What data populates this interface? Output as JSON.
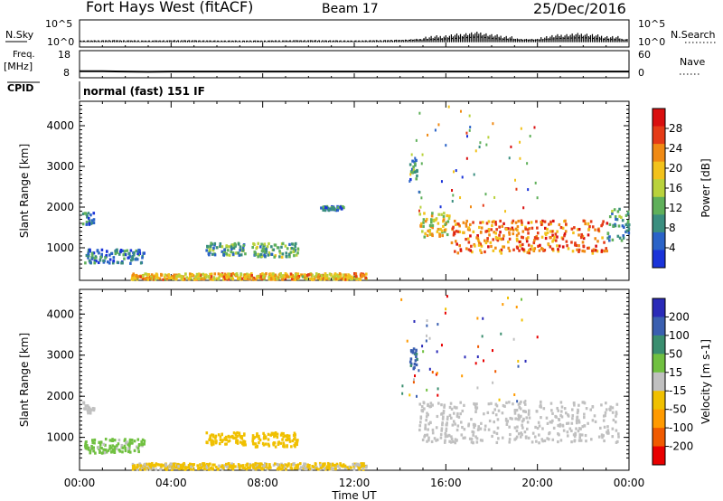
{
  "header": {
    "title": "Fort Hays West (fitACF)",
    "beam": "Beam 17",
    "date": "25/Dec/2016"
  },
  "mode_text": "normal (fast) 151 IF",
  "chart_data": [
    {
      "type": "line",
      "name": "noise-panel",
      "labels_left": {
        "main": "N.Sky",
        "ticks": [
          "10^5",
          "10^0"
        ]
      },
      "labels_right": {
        "main": "N.Search",
        "ticks": [
          "10^5",
          "10^0"
        ]
      },
      "x": {
        "ticks": [
          "00:00",
          "04:00",
          "08:00",
          "12:00",
          "16:00",
          "20:00",
          "00:00"
        ],
        "range_hours": [
          0,
          24
        ]
      },
      "series": [
        {
          "name": "N.Sky",
          "style": "solid",
          "hours": [
            0,
            1.5,
            3,
            4.5,
            6,
            8,
            10,
            12,
            14,
            15,
            16,
            17,
            17.5,
            18,
            19,
            20,
            21,
            22,
            23,
            24
          ],
          "log10_values": [
            0.5,
            0.6,
            0.5,
            0.6,
            0.5,
            0.5,
            0.6,
            0.5,
            0.7,
            1.0,
            1.4,
            2.0,
            2.2,
            1.6,
            1.0,
            0.9,
            1.6,
            1.9,
            1.2,
            0.9
          ]
        }
      ]
    },
    {
      "type": "line",
      "name": "freq-nave-panel",
      "labels_left": {
        "main": "Freq.",
        "unit": "[MHz]",
        "ticks": [
          "18",
          "8"
        ],
        "ylim": [
          8,
          18
        ]
      },
      "labels_right": {
        "main": "Nave",
        "ticks": [
          "60",
          "0"
        ],
        "ylim": [
          0,
          60
        ]
      },
      "cpid_label": "CPID",
      "series": [
        {
          "name": "Freq.",
          "hours": [
            0,
            1,
            2,
            3,
            4,
            5,
            6,
            8,
            10,
            12,
            14,
            16,
            18,
            20,
            22,
            24
          ],
          "values": [
            10.4,
            10.4,
            10.3,
            10.2,
            10.3,
            10.3,
            10.3,
            10.3,
            10.3,
            10.3,
            10.3,
            10.3,
            10.3,
            10.3,
            10.3,
            10.3
          ]
        }
      ]
    },
    {
      "type": "heatmap",
      "name": "power-panel",
      "ylabel": "Slant Range [km]",
      "yticks": [
        "4000",
        "3000",
        "2000",
        "1000"
      ],
      "ylim": [
        200,
        4600
      ],
      "xlim_hours": [
        0,
        24
      ],
      "colorbar": {
        "label": "Power [dB]",
        "ticks": [
          "28",
          "24",
          "20",
          "16",
          "12",
          "8",
          "4"
        ],
        "range": [
          0,
          32
        ]
      },
      "features": [
        {
          "t0": 0.1,
          "t1": 0.6,
          "r0": 1600,
          "r1": 1900,
          "value": 6
        },
        {
          "t0": 0.2,
          "t1": 2.8,
          "r0": 650,
          "r1": 1000,
          "value": 7
        },
        {
          "t0": 5.5,
          "t1": 7.2,
          "r0": 850,
          "r1": 1150,
          "value": 10
        },
        {
          "t0": 7.5,
          "t1": 9.5,
          "r0": 800,
          "r1": 1150,
          "value": 12
        },
        {
          "t0": 10.5,
          "t1": 11.5,
          "r0": 1950,
          "r1": 2050,
          "value": 6
        },
        {
          "t0": 14.4,
          "t1": 14.7,
          "r0": 2700,
          "r1": 3200,
          "value": 9
        },
        {
          "t0": 14.8,
          "t1": 16.2,
          "r0": 1300,
          "r1": 1900,
          "value": 18
        },
        {
          "t0": 16.2,
          "t1": 23.0,
          "r0": 900,
          "r1": 1700,
          "value": 24
        },
        {
          "t0": 23.0,
          "t1": 24.0,
          "r0": 1200,
          "r1": 2000,
          "value": 10
        },
        {
          "t0": 2.2,
          "t1": 12.5,
          "r0": 250,
          "r1": 400,
          "value": 20
        }
      ]
    },
    {
      "type": "heatmap",
      "name": "velocity-panel",
      "ylabel": "Slant Range [km]",
      "yticks": [
        "4000",
        "3000",
        "2000",
        "1000"
      ],
      "ylim": [
        200,
        4600
      ],
      "xlim_hours": [
        0,
        24
      ],
      "colorbar": {
        "label": "Velocity [m s-1]",
        "ticks": [
          "200",
          "100",
          "50",
          "15",
          "-15",
          "-50",
          "-100",
          "-200"
        ],
        "range": [
          -250,
          250
        ]
      },
      "features": [
        {
          "t0": 0.1,
          "t1": 0.6,
          "r0": 1600,
          "r1": 1900,
          "value": 0
        },
        {
          "t0": 0.2,
          "t1": 2.8,
          "r0": 650,
          "r1": 1000,
          "value": 40
        },
        {
          "t0": 5.5,
          "t1": 7.2,
          "r0": 850,
          "r1": 1150,
          "value": -45
        },
        {
          "t0": 7.5,
          "t1": 9.5,
          "r0": 800,
          "r1": 1150,
          "value": -45
        },
        {
          "t0": 14.4,
          "t1": 14.7,
          "r0": 2700,
          "r1": 3200,
          "value": 150
        },
        {
          "t0": 14.8,
          "t1": 23.5,
          "r0": 900,
          "r1": 1900,
          "value": 0
        },
        {
          "t0": 2.2,
          "t1": 12.5,
          "r0": 250,
          "r1": 400,
          "value": -35
        }
      ]
    }
  ],
  "x_axis": {
    "label": "Time UT",
    "ticks": [
      "00:00",
      "04:00",
      "08:00",
      "12:00",
      "16:00",
      "20:00",
      "00:00"
    ]
  },
  "colors": {
    "power": [
      "#1a33d9",
      "#2a63c8",
      "#3a8e7f",
      "#5fb05a",
      "#b9d23c",
      "#f2c21b",
      "#f08a14",
      "#e53b17",
      "#d90f0f"
    ],
    "velocity": [
      "#e80000",
      "#f05a00",
      "#ff9a00",
      "#f0c000",
      "#c0c0c0",
      "#70c040",
      "#3a8e6f",
      "#3a5fb0",
      "#2a2ab8"
    ]
  }
}
